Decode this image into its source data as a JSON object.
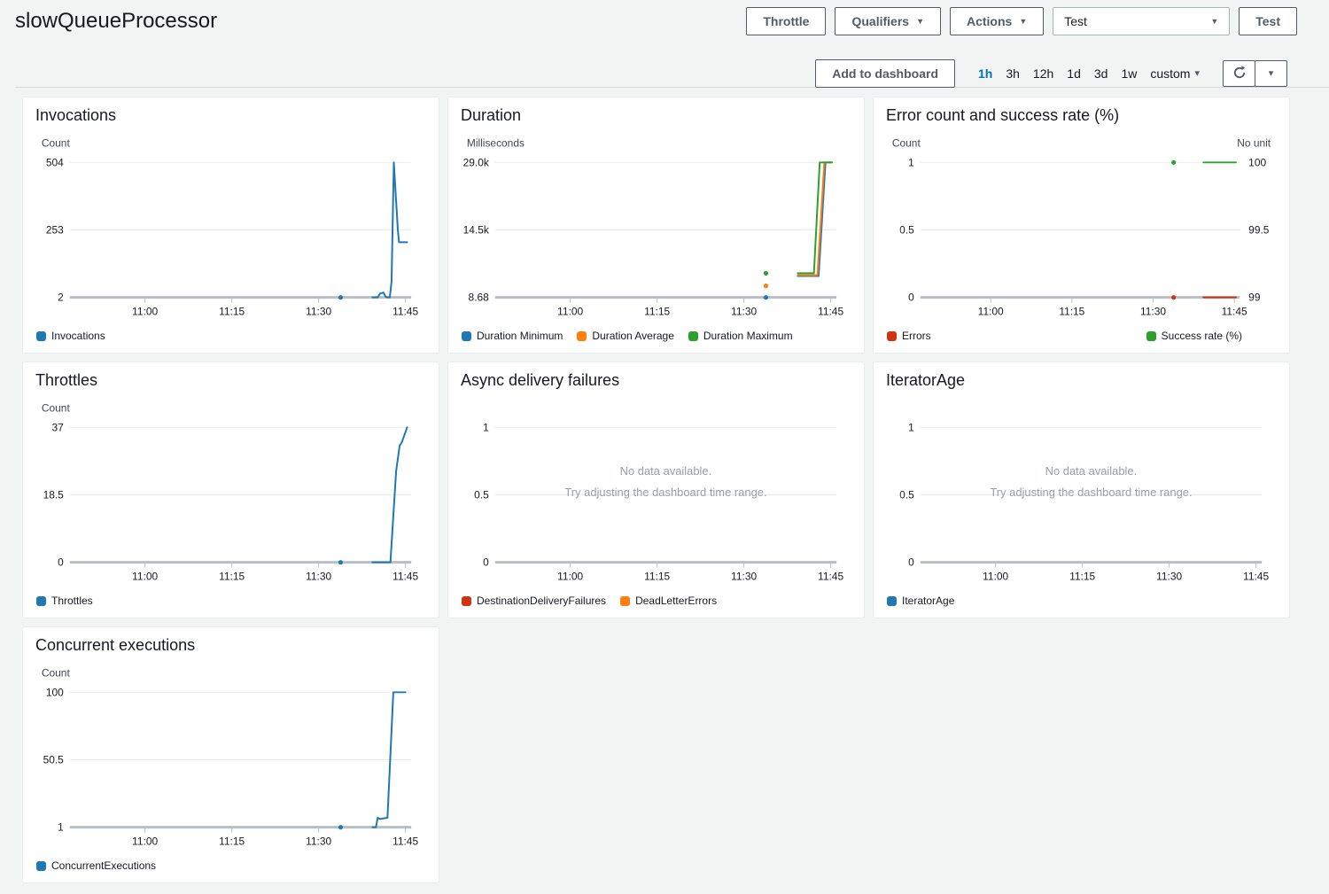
{
  "header": {
    "title": "slowQueueProcessor",
    "throttle_label": "Throttle",
    "qualifiers_label": "Qualifiers",
    "actions_label": "Actions",
    "test_select_value": "Test",
    "test_label": "Test"
  },
  "toolbar": {
    "add_to_dashboard": "Add to dashboard",
    "ranges": [
      "1h",
      "3h",
      "12h",
      "1d",
      "3d",
      "1w"
    ],
    "custom_label": "custom",
    "selected_range": "1h"
  },
  "colors": {
    "blue": "#1f77b4",
    "orange": "#ff7f0e",
    "green": "#2ca02c",
    "red": "#d13212",
    "accent_link": "#0073bb"
  },
  "chart_data": [
    {
      "type": "line",
      "title": "Invocations",
      "unit_left": "Count",
      "unit_right": "",
      "y_ticks": [
        "504",
        "253",
        "2"
      ],
      "y_domain": [
        2,
        504
      ],
      "right_y_ticks": null,
      "right_y_domain": null,
      "x_domain": [
        0,
        59
      ],
      "x_tick_pos": [
        13,
        28,
        43,
        58
      ],
      "x_tick_labels": [
        "11:00",
        "11:15",
        "11:30",
        "11:45"
      ],
      "no_data": null,
      "legend_split": false,
      "legend": [
        {
          "label": "Invocations",
          "color": "#1f77b4"
        }
      ],
      "series": [
        {
          "name": "Invocations",
          "color": "#1f77b4",
          "axis": "left",
          "dots": [
            [
              46.8,
              2
            ]
          ],
          "points": [
            [
              52.3,
              2
            ],
            [
              53.2,
              2
            ],
            [
              53.6,
              16
            ],
            [
              54.2,
              20
            ],
            [
              54.6,
              4
            ],
            [
              55,
              2
            ],
            [
              55.3,
              2
            ],
            [
              55.6,
              60
            ],
            [
              56,
              504
            ],
            [
              56.2,
              430
            ],
            [
              56.7,
              250
            ],
            [
              56.9,
              207
            ],
            [
              58.3,
              207
            ]
          ]
        }
      ]
    },
    {
      "type": "line",
      "title": "Duration",
      "unit_left": "Milliseconds",
      "unit_right": "",
      "y_ticks": [
        "29.0k",
        "14.5k",
        "8.68"
      ],
      "y_domain": [
        8.68,
        29000
      ],
      "right_y_ticks": null,
      "right_y_domain": null,
      "x_domain": [
        0,
        59
      ],
      "x_tick_pos": [
        13,
        28,
        43,
        58
      ],
      "x_tick_labels": [
        "11:00",
        "11:15",
        "11:30",
        "11:45"
      ],
      "no_data": null,
      "legend_split": false,
      "legend": [
        {
          "label": "Duration Minimum",
          "color": "#1f77b4"
        },
        {
          "label": "Duration Average",
          "color": "#ff7f0e"
        },
        {
          "label": "Duration Maximum",
          "color": "#2ca02c"
        }
      ],
      "series": [
        {
          "name": "Duration Minimum",
          "color": "#1f77b4",
          "axis": "left",
          "dots": [
            [
              46.8,
              8.68
            ]
          ],
          "points": [
            [
              52.3,
              4600
            ],
            [
              55.9,
              4600
            ],
            [
              57.1,
              29000
            ],
            [
              58.2,
              29000
            ]
          ]
        },
        {
          "name": "Duration Average",
          "color": "#ff7f0e",
          "axis": "left",
          "dots": [
            [
              46.8,
              2500
            ]
          ],
          "points": [
            [
              52.3,
              4800
            ],
            [
              55.7,
              4800
            ],
            [
              56.9,
              29000
            ],
            [
              58.2,
              29000
            ]
          ]
        },
        {
          "name": "Duration Maximum",
          "color": "#2ca02c",
          "axis": "left",
          "dots": [
            [
              46.8,
              5200
            ]
          ],
          "points": [
            [
              52.3,
              5200
            ],
            [
              55.1,
              5200
            ],
            [
              56.1,
              29000
            ],
            [
              58.2,
              29000
            ]
          ]
        }
      ]
    },
    {
      "type": "line",
      "title": "Error count and success rate (%)",
      "unit_left": "Count",
      "unit_right": "No unit",
      "y_ticks": [
        "1",
        "0.5",
        "0"
      ],
      "y_domain": [
        0,
        1
      ],
      "right_y_ticks": [
        "100",
        "99.5",
        "99"
      ],
      "right_y_domain": [
        99,
        100
      ],
      "x_domain": [
        0,
        59
      ],
      "x_tick_pos": [
        13,
        28,
        43,
        58
      ],
      "x_tick_labels": [
        "11:00",
        "11:15",
        "11:30",
        "11:45"
      ],
      "no_data": null,
      "legend_split": true,
      "legend": [
        {
          "label": "Errors",
          "color": "#d13212"
        },
        {
          "label": "Success rate (%)",
          "color": "#2ca02c"
        }
      ],
      "series": [
        {
          "name": "Errors",
          "color": "#d13212",
          "axis": "left",
          "dots": [
            [
              46.8,
              0
            ]
          ],
          "points": [
            [
              52.3,
              0
            ],
            [
              58.3,
              0
            ]
          ]
        },
        {
          "name": "Success rate (%)",
          "color": "#2ca02c",
          "axis": "right",
          "dots": [
            [
              46.8,
              100
            ]
          ],
          "points": [
            [
              52.3,
              100
            ],
            [
              58.3,
              100
            ]
          ]
        }
      ]
    },
    {
      "type": "line",
      "title": "Throttles",
      "unit_left": "Count",
      "unit_right": "",
      "y_ticks": [
        "37",
        "18.5",
        "0"
      ],
      "y_domain": [
        0,
        37
      ],
      "right_y_ticks": null,
      "right_y_domain": null,
      "x_domain": [
        0,
        59
      ],
      "x_tick_pos": [
        13,
        28,
        43,
        58
      ],
      "x_tick_labels": [
        "11:00",
        "11:15",
        "11:30",
        "11:45"
      ],
      "no_data": null,
      "legend_split": false,
      "legend": [
        {
          "label": "Throttles",
          "color": "#1f77b4"
        }
      ],
      "series": [
        {
          "name": "Throttles",
          "color": "#1f77b4",
          "axis": "left",
          "dots": [
            [
              46.8,
              0
            ]
          ],
          "points": [
            [
              52.3,
              0
            ],
            [
              55.4,
              0
            ],
            [
              56.4,
              25
            ],
            [
              57,
              32
            ],
            [
              57.4,
              33
            ],
            [
              58.3,
              37
            ]
          ]
        }
      ]
    },
    {
      "type": "line",
      "title": "Async delivery failures",
      "unit_left": "",
      "unit_right": "",
      "y_ticks": [
        "1",
        "0.5",
        "0"
      ],
      "y_domain": [
        0,
        1
      ],
      "right_y_ticks": null,
      "right_y_domain": null,
      "x_domain": [
        0,
        59
      ],
      "x_tick_pos": [
        13,
        28,
        43,
        58
      ],
      "x_tick_labels": [
        "11:00",
        "11:15",
        "11:30",
        "11:45"
      ],
      "no_data": {
        "line1": "No data available.",
        "line2": "Try adjusting the dashboard time range."
      },
      "legend_split": false,
      "legend": [
        {
          "label": "DestinationDeliveryFailures",
          "color": "#d13212"
        },
        {
          "label": "DeadLetterErrors",
          "color": "#ff7f0e"
        }
      ],
      "series": []
    },
    {
      "type": "line",
      "title": "IteratorAge",
      "unit_left": "",
      "unit_right": "",
      "y_ticks": [
        "1",
        "0.5",
        "0"
      ],
      "y_domain": [
        0,
        1
      ],
      "right_y_ticks": null,
      "right_y_domain": null,
      "x_domain": [
        0,
        59
      ],
      "x_tick_pos": [
        13,
        28,
        43,
        58
      ],
      "x_tick_labels": [
        "11:00",
        "11:15",
        "11:30",
        "11:45"
      ],
      "no_data": {
        "line1": "No data available.",
        "line2": "Try adjusting the dashboard time range."
      },
      "legend_split": false,
      "legend": [
        {
          "label": "IteratorAge",
          "color": "#1f77b4"
        }
      ],
      "series": []
    },
    {
      "type": "line",
      "title": "Concurrent executions",
      "unit_left": "Count",
      "unit_right": "",
      "y_ticks": [
        "100",
        "50.5",
        "1"
      ],
      "y_domain": [
        1,
        100
      ],
      "right_y_ticks": null,
      "right_y_domain": null,
      "x_domain": [
        0,
        59
      ],
      "x_tick_pos": [
        13,
        28,
        43,
        58
      ],
      "x_tick_labels": [
        "11:00",
        "11:15",
        "11:30",
        "11:45"
      ],
      "no_data": null,
      "legend_split": false,
      "legend": [
        {
          "label": "ConcurrentExecutions",
          "color": "#1f77b4"
        }
      ],
      "series": [
        {
          "name": "ConcurrentExecutions",
          "color": "#1f77b4",
          "axis": "left",
          "dots": [
            [
              46.8,
              1
            ]
          ],
          "points": [
            [
              52.3,
              1
            ],
            [
              52.9,
              1
            ],
            [
              53.2,
              8
            ],
            [
              53.6,
              7
            ],
            [
              54.9,
              8
            ],
            [
              55.9,
              100
            ],
            [
              58,
              100
            ]
          ]
        }
      ]
    }
  ]
}
